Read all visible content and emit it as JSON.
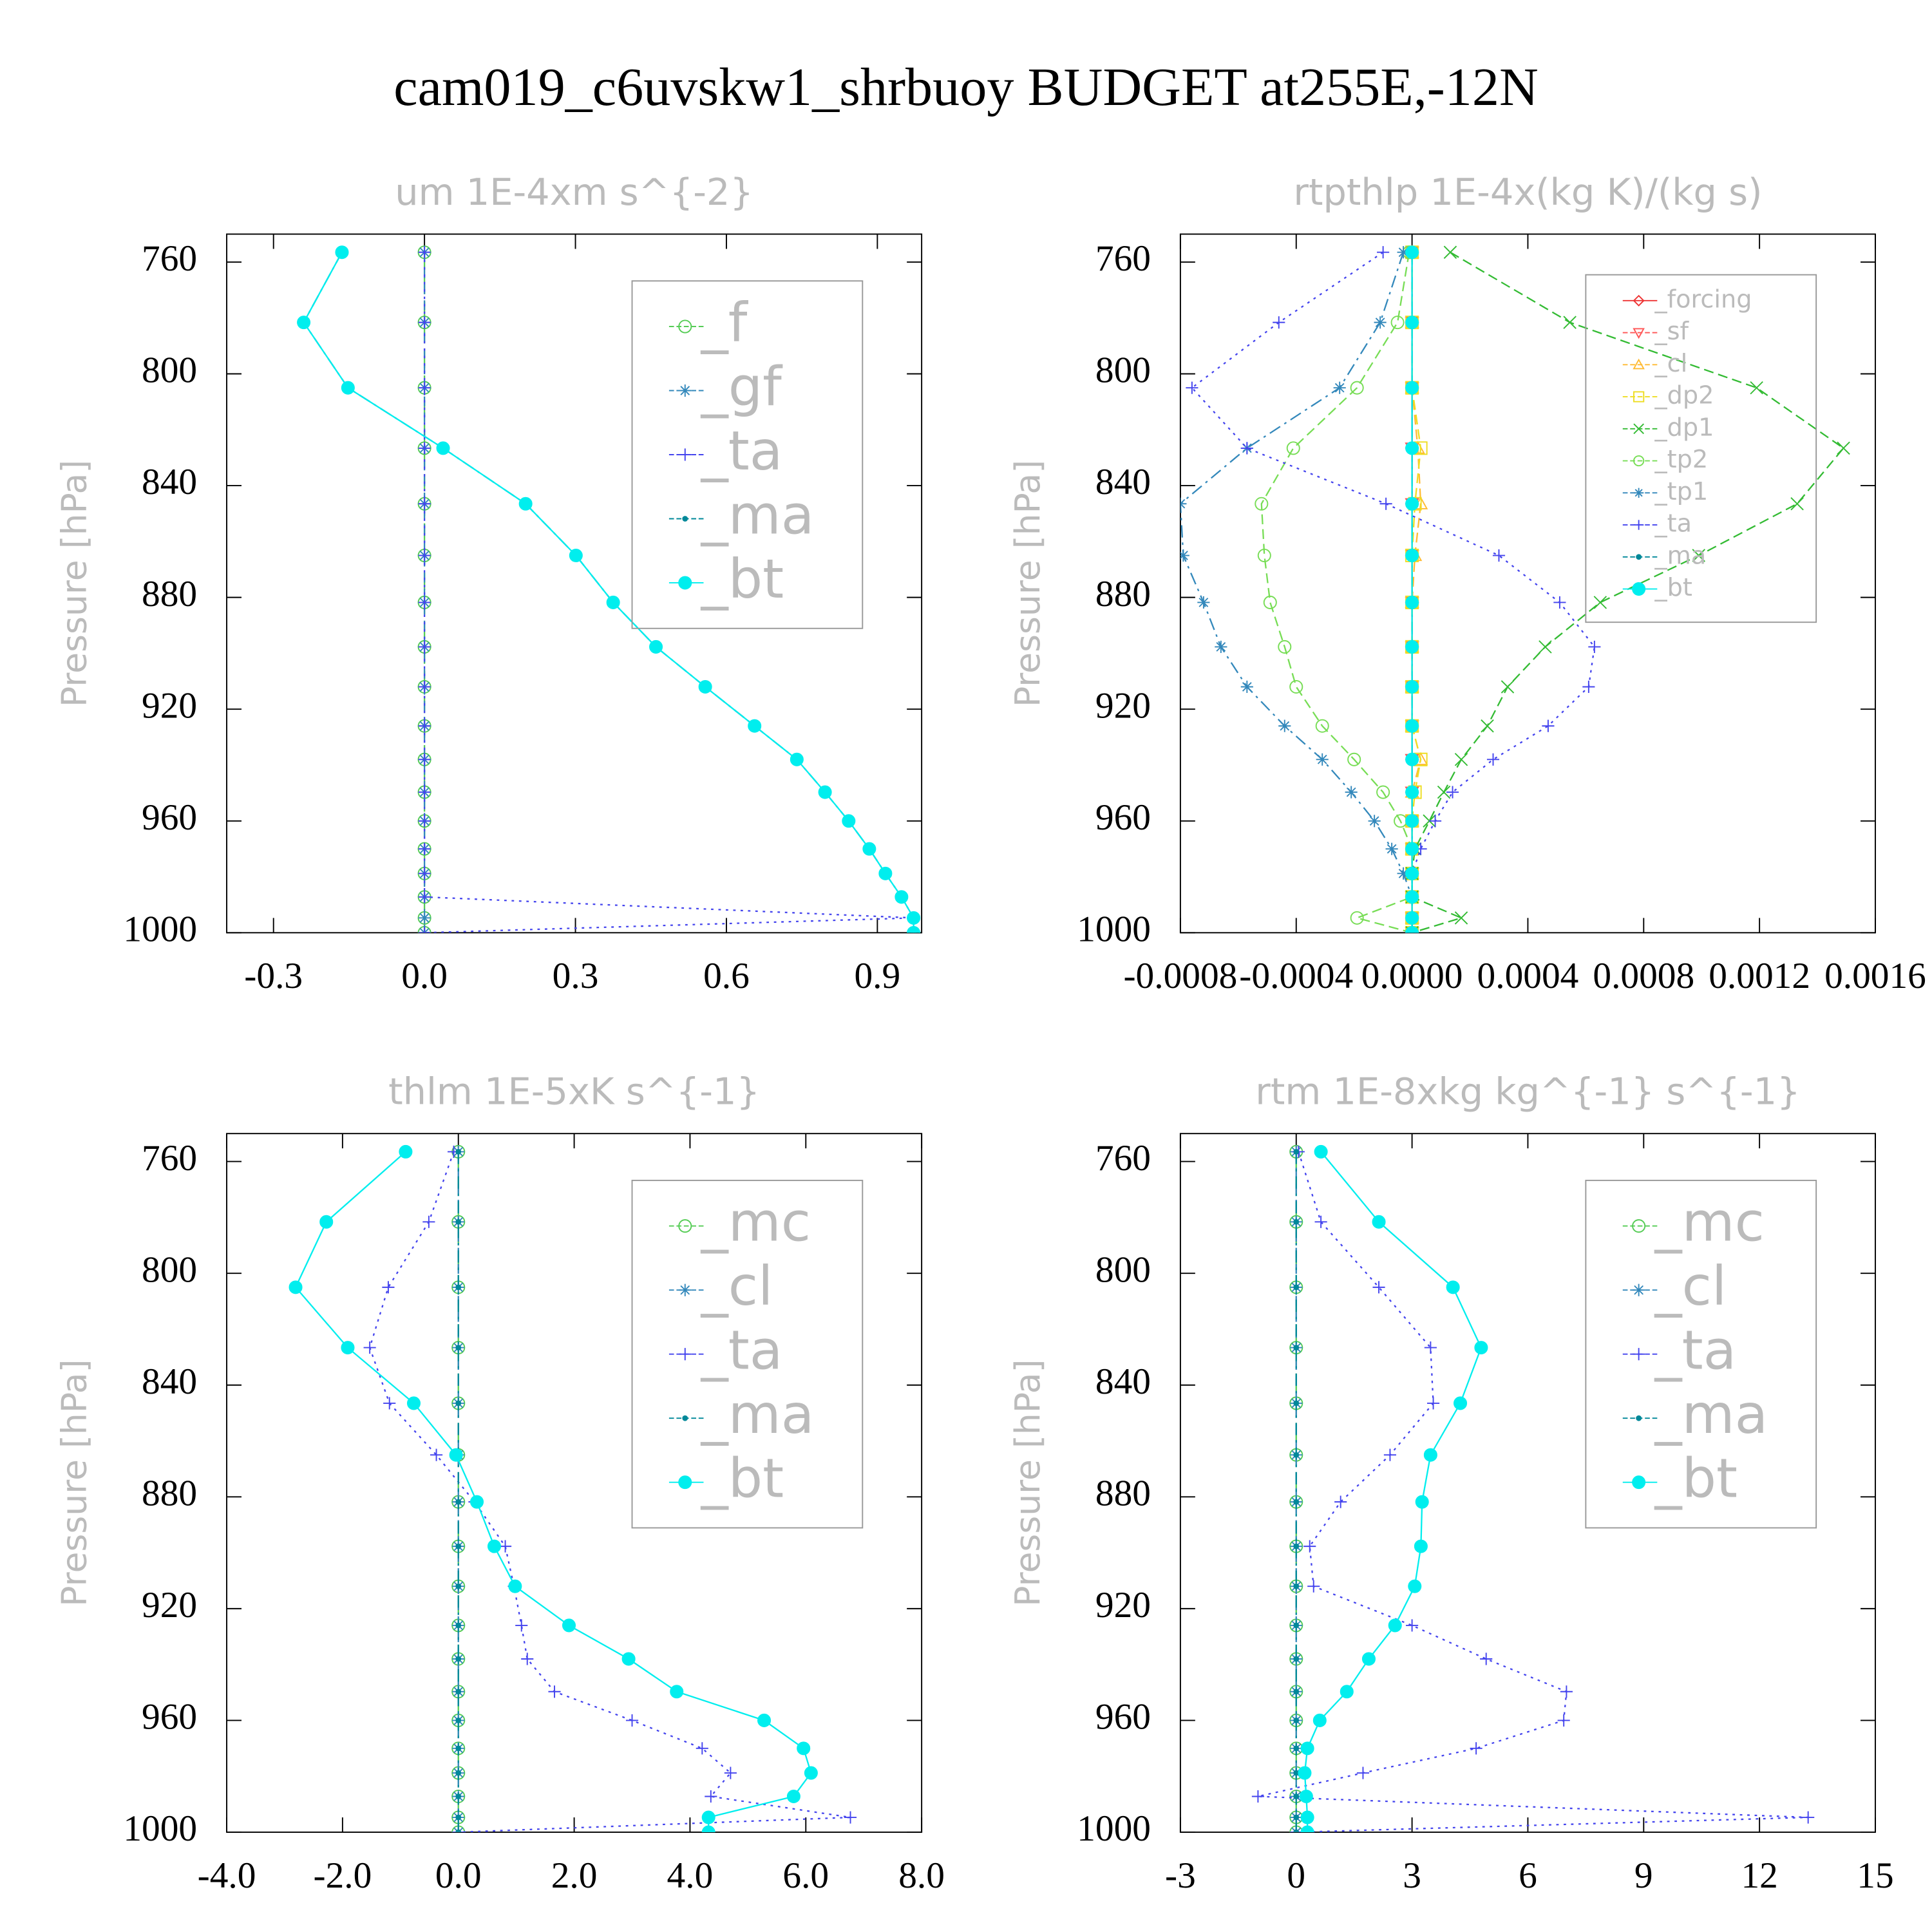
{
  "title": "cam019_c6uvskw1_shrbuoy  BUDGET at255E,-12N",
  "chart_data": [
    {
      "type": "line",
      "title": "um  1E-4xm s^{-2}",
      "ylabel": "Pressure [hPa]",
      "legend": "upper right",
      "xlim": [
        -0.393,
        0.988
      ],
      "xticks": [
        -0.3,
        {
          "value": 0,
          "label": "0.0"
        },
        0.3,
        0.6,
        0.9
      ],
      "ylim": [
        1000,
        750
      ],
      "yticks": [
        760,
        800,
        840,
        880,
        920,
        960,
        1000
      ],
      "y": [
        756.5,
        781.6,
        805,
        826.6,
        846.5,
        865,
        881.8,
        897.7,
        912,
        926,
        938,
        949.7,
        960,
        970,
        978.8,
        987.2,
        994.7,
        1000
      ],
      "series": [
        {
          "name": "_f",
          "color": "#55cc55",
          "marker": "circle",
          "dash": "14,6",
          "values": [
            0,
            0,
            0,
            0,
            0,
            0,
            0,
            0,
            0,
            0,
            0,
            0,
            0,
            0,
            0,
            0,
            0,
            0
          ]
        },
        {
          "name": "_gf",
          "color": "#3388bb",
          "marker": "asterisk",
          "dash": "8,5",
          "values": [
            0,
            0,
            0,
            0,
            0,
            0,
            0,
            0,
            0,
            0,
            0,
            0,
            0,
            0,
            0,
            0,
            0,
            0
          ]
        },
        {
          "name": "_ta",
          "color": "#4444ee",
          "marker": "plus",
          "dash": "2,4",
          "values": [
            0,
            0,
            0,
            0,
            0,
            0,
            0,
            0,
            0,
            0,
            0,
            0,
            0,
            0,
            0,
            0,
            0.972,
            0
          ]
        },
        {
          "name": "_ma",
          "color": "#008899",
          "marker": "dot",
          "dash": "10,4,2,4",
          "values": [
            -0.164,
            -0.24,
            -0.152,
            0.037,
            0.201,
            0.301,
            0.375,
            0.46,
            0.558,
            0.656,
            0.74,
            0.796,
            0.843,
            0.884,
            0.916,
            0.948,
            0.972,
            0.972
          ]
        },
        {
          "name": "_bt",
          "color": "#00eeee",
          "marker": "filled",
          "dash": "none",
          "values": [
            -0.164,
            -0.24,
            -0.152,
            0.037,
            0.201,
            0.301,
            0.375,
            0.46,
            0.558,
            0.656,
            0.74,
            0.796,
            0.843,
            0.884,
            0.916,
            0.948,
            0.972,
            0.972
          ]
        }
      ]
    },
    {
      "type": "line",
      "title": "rtpthlp  1E-4x(kg K)/(kg s)",
      "ylabel": "Pressure [hPa]",
      "legend": "upper right",
      "xlim": [
        -0.0008,
        0.0016
      ],
      "xticks": [
        -0.0008,
        -0.0004,
        {
          "value": 0,
          "label": "0.0000"
        },
        0.0004,
        0.0008,
        0.0012,
        0.0016
      ],
      "ylim": [
        1000,
        750
      ],
      "yticks": [
        760,
        800,
        840,
        880,
        920,
        960,
        1000
      ],
      "y": [
        756.5,
        781.6,
        805,
        826.6,
        846.5,
        865,
        881.8,
        897.7,
        912,
        926,
        938,
        949.7,
        960,
        970,
        978.8,
        987.2,
        994.7,
        1000
      ],
      "series": [
        {
          "name": "_forcing",
          "color": "#ee3333",
          "marker": "diamond",
          "dash": "none",
          "values": [
            0,
            0,
            0,
            0,
            0,
            0,
            0,
            0,
            0,
            0,
            0,
            0,
            0,
            0,
            0,
            0,
            0,
            0
          ]
        },
        {
          "name": "_sf",
          "color": "#ff5555",
          "marker": "tridown",
          "dash": "8,4",
          "values": [
            0,
            0,
            0,
            0,
            0,
            0,
            0,
            0,
            0,
            0,
            0,
            0,
            0,
            0,
            0,
            0,
            0,
            0
          ]
        },
        {
          "name": "_cl",
          "color": "#ffbb33",
          "marker": "triup",
          "dash": "8,4",
          "values": [
            0,
            0,
            0,
            2e-05,
            3e-05,
            1e-05,
            0,
            0,
            0,
            0,
            3e-05,
            0,
            0,
            0,
            0,
            0,
            0,
            0
          ]
        },
        {
          "name": "_dp2",
          "color": "#eedd22",
          "marker": "square",
          "dash": "8,4",
          "values": [
            0,
            0,
            0,
            3e-05,
            1e-05,
            0,
            0,
            0,
            0,
            0,
            3e-05,
            1e-05,
            0,
            0,
            0,
            0,
            0,
            0
          ]
        },
        {
          "name": "_dp1",
          "color": "#33bb33",
          "marker": "cross",
          "dash": "8,4",
          "values": [
            0.000132,
            0.000545,
            0.00119,
            0.00149,
            0.00133,
            0.00099,
            0.00065,
            0.00046,
            0.00033,
            0.00026,
            0.00017,
            0.00011,
            6e-05,
            1e-05,
            0,
            0,
            0.00017,
            0
          ]
        },
        {
          "name": "_tp2",
          "color": "#77dd55",
          "marker": "circle",
          "dash": "8,4",
          "values": [
            -1e-05,
            -5e-05,
            -0.00019,
            -0.00041,
            -0.00052,
            -0.00051,
            -0.00049,
            -0.00044,
            -0.0004,
            -0.00031,
            -0.0002,
            -0.0001,
            -4e-05,
            0,
            0,
            0,
            -0.00019,
            0
          ]
        },
        {
          "name": "_tp1",
          "color": "#3388bb",
          "marker": "asterisk",
          "dash": "10,4,2,4",
          "values": [
            -3e-05,
            -0.00011,
            -0.00025,
            -0.00057,
            -0.0008,
            -0.00079,
            -0.00072,
            -0.00066,
            -0.00057,
            -0.00044,
            -0.00031,
            -0.00021,
            -0.00013,
            -7e-05,
            -3e-05,
            0,
            0,
            0
          ]
        },
        {
          "name": "_ta",
          "color": "#4444ee",
          "marker": "plus",
          "dash": "2,4",
          "values": [
            -0.0001,
            -0.00046,
            -0.00076,
            -0.00057,
            -9e-05,
            0.0003,
            0.00051,
            0.00063,
            0.00061,
            0.00047,
            0.00028,
            0.00014,
            8e-05,
            3e-05,
            0,
            0,
            0,
            0
          ]
        },
        {
          "name": "_ma",
          "color": "#008899",
          "marker": "dot",
          "dash": "10,4,2,4",
          "values": [
            0,
            0,
            0,
            0,
            0,
            0,
            0,
            0,
            0,
            0,
            0,
            0,
            0,
            0,
            0,
            0,
            0,
            0
          ]
        },
        {
          "name": "_bt",
          "color": "#00eeee",
          "marker": "filled",
          "dash": "none",
          "values": [
            0,
            0,
            0,
            0,
            0,
            0,
            0,
            0,
            0,
            0,
            0,
            0,
            0,
            0,
            0,
            0,
            0,
            0
          ]
        }
      ]
    },
    {
      "type": "line",
      "title": "thlm  1E-5xK s^{-1}",
      "ylabel": "Pressure [hPa]",
      "legend": "upper right",
      "xlim": [
        -4,
        8
      ],
      "xticks": [
        {
          "value": -4,
          "label": "-4.0"
        },
        {
          "value": -2,
          "label": "-2.0"
        },
        {
          "value": 0,
          "label": "0.0"
        },
        {
          "value": 2,
          "label": "2.0"
        },
        {
          "value": 4,
          "label": "4.0"
        },
        {
          "value": 6,
          "label": "6.0"
        },
        {
          "value": 8,
          "label": "8.0"
        }
      ],
      "ylim": [
        1000,
        750
      ],
      "yticks": [
        760,
        800,
        840,
        880,
        920,
        960,
        1000
      ],
      "y": [
        756.5,
        781.6,
        805,
        826.6,
        846.5,
        865,
        881.8,
        897.7,
        912,
        926,
        938,
        949.7,
        960,
        970,
        978.8,
        987.2,
        994.7,
        1000
      ],
      "series": [
        {
          "name": "_mc",
          "color": "#55cc55",
          "marker": "circle",
          "dash": "14,6",
          "values": [
            0,
            0,
            0,
            0,
            0,
            0,
            0,
            0,
            0,
            0,
            0,
            0,
            0,
            0,
            0,
            0,
            0,
            0
          ]
        },
        {
          "name": "_cl",
          "color": "#3388bb",
          "marker": "asterisk",
          "dash": "8,5",
          "values": [
            0,
            0,
            0,
            0,
            0,
            0,
            0,
            0,
            0,
            0,
            0,
            0,
            0,
            0,
            0,
            0,
            0,
            0
          ]
        },
        {
          "name": "_ta",
          "color": "#4444ee",
          "marker": "plus",
          "dash": "2,4",
          "values": [
            -0.08,
            -0.51,
            -1.21,
            -1.53,
            -1.19,
            -0.38,
            0.28,
            0.81,
            0.96,
            1.09,
            1.19,
            1.66,
            3.0,
            4.21,
            4.7,
            4.36,
            6.77,
            0
          ]
        },
        {
          "name": "_ma",
          "color": "#008899",
          "marker": "dot",
          "dash": "10,4,2,4",
          "values": [
            0,
            0,
            0,
            0,
            0,
            0,
            0,
            0,
            0,
            0,
            0,
            0,
            0,
            0,
            0,
            0,
            0,
            0
          ]
        },
        {
          "name": "_bt",
          "color": "#00eeee",
          "marker": "filled",
          "dash": "none",
          "values": [
            -0.91,
            -2.28,
            -2.81,
            -1.91,
            -0.77,
            -0.04,
            0.32,
            0.62,
            0.98,
            1.91,
            2.94,
            3.77,
            5.28,
            5.96,
            6.09,
            5.79,
            4.32,
            4.32
          ]
        }
      ]
    },
    {
      "type": "line",
      "title": "rtm  1E-8xkg kg^{-1} s^{-1}",
      "ylabel": "Pressure [hPa]",
      "legend": "upper right",
      "xlim": [
        -3,
        15
      ],
      "xticks": [
        -3,
        0,
        3,
        6,
        9,
        12,
        15
      ],
      "ylim": [
        1000,
        750
      ],
      "yticks": [
        760,
        800,
        840,
        880,
        920,
        960,
        1000
      ],
      "y": [
        756.5,
        781.6,
        805,
        826.6,
        846.5,
        865,
        881.8,
        897.7,
        912,
        926,
        938,
        949.7,
        960,
        970,
        978.8,
        987.2,
        994.7,
        1000
      ],
      "series": [
        {
          "name": "_mc",
          "color": "#55cc55",
          "marker": "circle",
          "dash": "14,6",
          "values": [
            0,
            0,
            0,
            0,
            0,
            0,
            0,
            0,
            0,
            0,
            0,
            0,
            0,
            0,
            0,
            0,
            0,
            0
          ]
        },
        {
          "name": "_cl",
          "color": "#3388bb",
          "marker": "asterisk",
          "dash": "8,5",
          "values": [
            0,
            0,
            0,
            0,
            0,
            0,
            0,
            0,
            0,
            0,
            0,
            0,
            0,
            0,
            0,
            0,
            0,
            0
          ]
        },
        {
          "name": "_ta",
          "color": "#4444ee",
          "marker": "plus",
          "dash": "2,4",
          "values": [
            0.06,
            0.64,
            2.14,
            3.48,
            3.55,
            2.43,
            1.15,
            0.35,
            0.45,
            3.0,
            4.92,
            7.0,
            6.93,
            4.66,
            1.73,
            -0.99,
            13.26,
            0
          ]
        },
        {
          "name": "_ma",
          "color": "#008899",
          "marker": "dot",
          "dash": "10,4,2,4",
          "values": [
            0,
            0,
            0,
            0,
            0,
            0,
            0,
            0,
            0,
            0,
            0,
            0,
            0,
            0,
            0,
            0,
            0,
            0
          ]
        },
        {
          "name": "_bt",
          "color": "#00eeee",
          "marker": "filled",
          "dash": "none",
          "values": [
            0.64,
            2.14,
            4.06,
            4.79,
            4.25,
            3.48,
            3.26,
            3.23,
            3.07,
            2.56,
            1.88,
            1.31,
            0.61,
            0.29,
            0.22,
            0.26,
            0.29,
            0.29
          ]
        }
      ]
    }
  ]
}
